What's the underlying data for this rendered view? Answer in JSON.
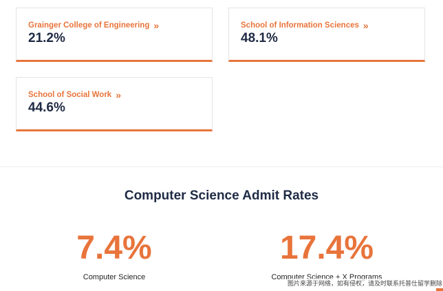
{
  "colors": {
    "accent": "#e8743b",
    "navy": "#1f2a44"
  },
  "cards": [
    {
      "title": "Grainger College of Engineering",
      "value": "21.2%",
      "chevron": "»"
    },
    {
      "title": "School of Information Sciences",
      "value": "48.1%",
      "chevron": "»"
    },
    {
      "title": "School of Social Work",
      "value": "44.6%",
      "chevron": "»"
    }
  ],
  "section": {
    "title": "Computer Science Admit Rates"
  },
  "stats": [
    {
      "value": "7.4%",
      "label": "Computer Science"
    },
    {
      "value": "17.4%",
      "label": "Computer Science + X Programs"
    }
  ],
  "watermark": {
    "text": "图片来源于网络，如有侵权，请及时联系托普仕留学删除"
  }
}
